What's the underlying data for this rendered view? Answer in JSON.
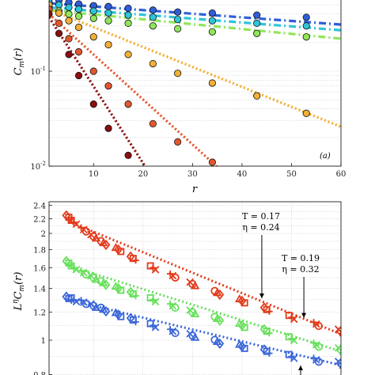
{
  "chart_data": [
    {
      "type": "scatter",
      "panel_label": "(a)",
      "xlabel": "r",
      "ylabel": "C_m(r)",
      "xlim": [
        1,
        60
      ],
      "ylim": [
        0.01,
        1
      ],
      "yscale": "log",
      "x_ticks": [
        10,
        20,
        30,
        40,
        50,
        60
      ],
      "x_tick_labels": [
        "10",
        "20",
        "30",
        "40",
        "50",
        "60"
      ],
      "y_ticks": [
        0.01,
        0.1
      ],
      "y_tick_labels": [
        "10^-2",
        "10^-1"
      ],
      "grid": true,
      "series": [
        {
          "color": "#2f5ed8",
          "line": [
            [
              1,
              0.52
            ],
            [
              60,
              0.31
            ]
          ],
          "dash": "dashdot",
          "x": [
            1,
            3,
            5,
            7,
            10,
            13,
            17,
            22,
            27,
            34,
            43,
            53
          ],
          "y": [
            0.58,
            0.56,
            0.53,
            0.51,
            0.49,
            0.48,
            0.46,
            0.44,
            0.42,
            0.41,
            0.39,
            0.37
          ]
        },
        {
          "color": "#2ec4d8",
          "line": [
            [
              1,
              0.47
            ],
            [
              60,
              0.27
            ]
          ],
          "dash": "dashdot",
          "x": [
            1,
            3,
            5,
            7,
            10,
            13,
            17,
            22,
            27,
            34,
            43,
            53
          ],
          "y": [
            0.53,
            0.5,
            0.47,
            0.45,
            0.43,
            0.41,
            0.39,
            0.37,
            0.35,
            0.34,
            0.32,
            0.3
          ]
        },
        {
          "color": "#8fe65a",
          "line": [
            [
              1,
              0.44
            ],
            [
              60,
              0.22
            ]
          ],
          "dash": "dashdot",
          "x": [
            1,
            3,
            5,
            7,
            10,
            13,
            17,
            22,
            27,
            34,
            43,
            53
          ],
          "y": [
            0.47,
            0.43,
            0.4,
            0.38,
            0.36,
            0.34,
            0.32,
            0.3,
            0.28,
            0.26,
            0.25,
            0.23
          ]
        },
        {
          "color": "#f2b035",
          "line": [
            [
              1,
              0.45
            ],
            [
              60,
              0.026
            ]
          ],
          "dash": "dotted",
          "x": [
            1,
            3,
            5,
            7,
            10,
            13,
            17,
            22,
            27,
            34,
            43,
            53
          ],
          "y": [
            0.5,
            0.41,
            0.34,
            0.29,
            0.23,
            0.19,
            0.15,
            0.12,
            0.095,
            0.075,
            0.055,
            0.036
          ]
        },
        {
          "color": "#e4572e",
          "line": [
            [
              1,
              0.4
            ],
            [
              35,
              0.0098
            ]
          ],
          "dash": "dotted",
          "x": [
            1,
            3,
            5,
            7,
            10,
            13,
            17,
            22,
            27,
            34
          ],
          "y": [
            0.45,
            0.32,
            0.22,
            0.16,
            0.1,
            0.07,
            0.045,
            0.028,
            0.018,
            0.011
          ]
        },
        {
          "color": "#8b0e0e",
          "line": [
            [
              1,
              0.37
            ],
            [
              20.5,
              0.0098
            ]
          ],
          "dash": "dotted",
          "x": [
            1,
            3,
            5,
            7,
            10,
            13,
            17
          ],
          "y": [
            0.4,
            0.25,
            0.15,
            0.09,
            0.045,
            0.025,
            0.013
          ]
        }
      ]
    },
    {
      "type": "scatter",
      "xlabel": "",
      "ylabel": "L^η C_m(r)",
      "xlim": [
        1,
        60
      ],
      "ylim": [
        0.8,
        2.5
      ],
      "yscale": "log",
      "y_ticks": [
        0.8,
        1,
        1.2,
        1.4,
        1.6,
        1.8,
        2,
        2.2,
        2.4
      ],
      "y_tick_labels": [
        "0.8",
        "1",
        "1.2",
        "1.4",
        "1.6",
        "1.8",
        "2",
        "2.2",
        "2.4"
      ],
      "grid": true,
      "annotations": [
        {
          "line1": "T = 0.17",
          "line2": "η = 0.24",
          "arrow_tip": [
            44,
            1.26
          ]
        },
        {
          "line1": "T = 0.19",
          "line2": "η = 0.32",
          "arrow_tip": [
            52.5,
            1.11
          ]
        }
      ],
      "series": [
        {
          "color": "#e23a1a",
          "line": [
            [
              5,
              2.16
            ],
            [
              60,
              1.04
            ]
          ],
          "x": [
            5,
            6,
            8,
            10,
            12,
            15,
            18,
            22,
            26,
            30,
            35,
            40,
            45,
            50,
            55,
            60
          ],
          "y": [
            2.22,
            2.15,
            2.05,
            1.96,
            1.88,
            1.8,
            1.7,
            1.6,
            1.52,
            1.44,
            1.36,
            1.29,
            1.22,
            1.16,
            1.11,
            1.06
          ]
        },
        {
          "color": "#66e05a",
          "line": [
            [
              5,
              1.62
            ],
            [
              60,
              0.93
            ]
          ],
          "x": [
            5,
            6,
            8,
            10,
            12,
            15,
            18,
            22,
            26,
            30,
            35,
            40,
            45,
            50,
            55,
            60
          ],
          "y": [
            1.65,
            1.6,
            1.55,
            1.5,
            1.45,
            1.4,
            1.35,
            1.3,
            1.25,
            1.2,
            1.15,
            1.1,
            1.06,
            1.01,
            0.97,
            0.94
          ]
        },
        {
          "color": "#3a66d8",
          "line": [
            [
              5,
              1.3
            ],
            [
              60,
              0.85
            ]
          ],
          "x": [
            5,
            6,
            8,
            10,
            12,
            15,
            18,
            22,
            26,
            30,
            35,
            40,
            45,
            50,
            55,
            60
          ],
          "y": [
            1.31,
            1.3,
            1.28,
            1.25,
            1.22,
            1.18,
            1.14,
            1.1,
            1.06,
            1.03,
            0.99,
            0.96,
            0.93,
            0.9,
            0.88,
            0.86
          ]
        }
      ]
    }
  ]
}
